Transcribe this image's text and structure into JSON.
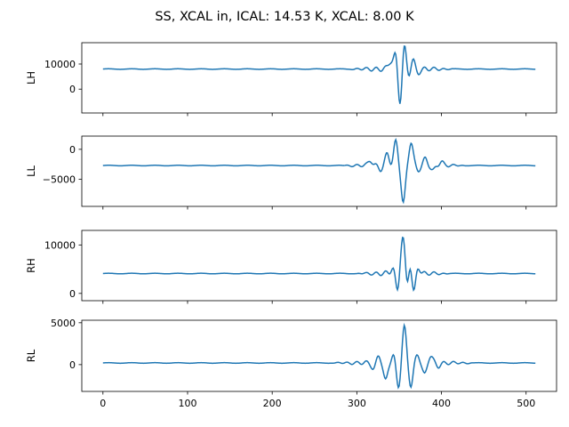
{
  "title": "SS, XCAL in, ICAL: 14.53 K, XCAL: 8.00 K",
  "chart_data": [
    {
      "type": "line",
      "ylabel": "LH",
      "xlim": [
        -25,
        536
      ],
      "ylim": [
        -9500,
        18500
      ],
      "yticks": [
        0,
        10000
      ],
      "xticks": [
        0,
        100,
        200,
        300,
        400,
        500
      ],
      "show_xticklabels": false,
      "color": "#1f77b4",
      "baseline": 8000,
      "signal_start": 290,
      "signal_end": 415,
      "samples": 512,
      "peaks": [
        {
          "x": 340,
          "y": 10000
        },
        {
          "x": 346,
          "y": 15500
        },
        {
          "x": 351,
          "y": -7000
        },
        {
          "x": 356,
          "y": 17500
        },
        {
          "x": 361,
          "y": 5200
        },
        {
          "x": 366,
          "y": 11800
        },
        {
          "x": 372,
          "y": 6200
        }
      ]
    },
    {
      "type": "line",
      "ylabel": "LL",
      "xlim": [
        -25,
        536
      ],
      "ylim": [
        -9500,
        2200
      ],
      "yticks": [
        -5000,
        0
      ],
      "xticks": [
        0,
        100,
        200,
        300,
        400,
        500
      ],
      "show_xticklabels": false,
      "color": "#1f77b4",
      "baseline": -2700,
      "signal_start": 280,
      "signal_end": 430,
      "samples": 512,
      "peaks": [
        {
          "x": 316,
          "y": -2100
        },
        {
          "x": 328,
          "y": -3700
        },
        {
          "x": 336,
          "y": -600
        },
        {
          "x": 346,
          "y": 1600
        },
        {
          "x": 355,
          "y": -8800
        },
        {
          "x": 364,
          "y": 1000
        },
        {
          "x": 372,
          "y": -3600
        },
        {
          "x": 381,
          "y": -1300
        },
        {
          "x": 390,
          "y": -3300
        },
        {
          "x": 400,
          "y": -2000
        }
      ]
    },
    {
      "type": "line",
      "ylabel": "RH",
      "xlim": [
        -25,
        536
      ],
      "ylim": [
        -1500,
        13000
      ],
      "yticks": [
        0,
        10000
      ],
      "xticks": [
        0,
        100,
        200,
        300,
        400,
        500
      ],
      "show_xticklabels": false,
      "color": "#1f77b4",
      "baseline": 4100,
      "signal_start": 300,
      "signal_end": 410,
      "samples": 512,
      "peaks": [
        {
          "x": 343,
          "y": 5700
        },
        {
          "x": 348,
          "y": 200
        },
        {
          "x": 353,
          "y": 8000
        },
        {
          "x": 356,
          "y": 12300
        },
        {
          "x": 359,
          "y": 2000
        },
        {
          "x": 363,
          "y": 6200
        },
        {
          "x": 367,
          "y": 500
        },
        {
          "x": 372,
          "y": 5000
        }
      ]
    },
    {
      "type": "line",
      "ylabel": "RL",
      "xlim": [
        -25,
        536
      ],
      "ylim": [
        -3200,
        5300
      ],
      "yticks": [
        0,
        5000
      ],
      "xticks": [
        0,
        100,
        200,
        300,
        400,
        500
      ],
      "show_xticklabels": true,
      "color": "#1f77b4",
      "baseline": 200,
      "signal_start": 270,
      "signal_end": 440,
      "samples": 512,
      "peaks": [
        {
          "x": 320,
          "y": -500
        },
        {
          "x": 326,
          "y": 1000
        },
        {
          "x": 334,
          "y": -1700
        },
        {
          "x": 343,
          "y": 1300
        },
        {
          "x": 349,
          "y": -2800
        },
        {
          "x": 356,
          "y": 4700
        },
        {
          "x": 364,
          "y": -2700
        },
        {
          "x": 372,
          "y": 1100
        },
        {
          "x": 380,
          "y": -1000
        },
        {
          "x": 387,
          "y": 900
        },
        {
          "x": 396,
          "y": -400
        }
      ]
    }
  ]
}
